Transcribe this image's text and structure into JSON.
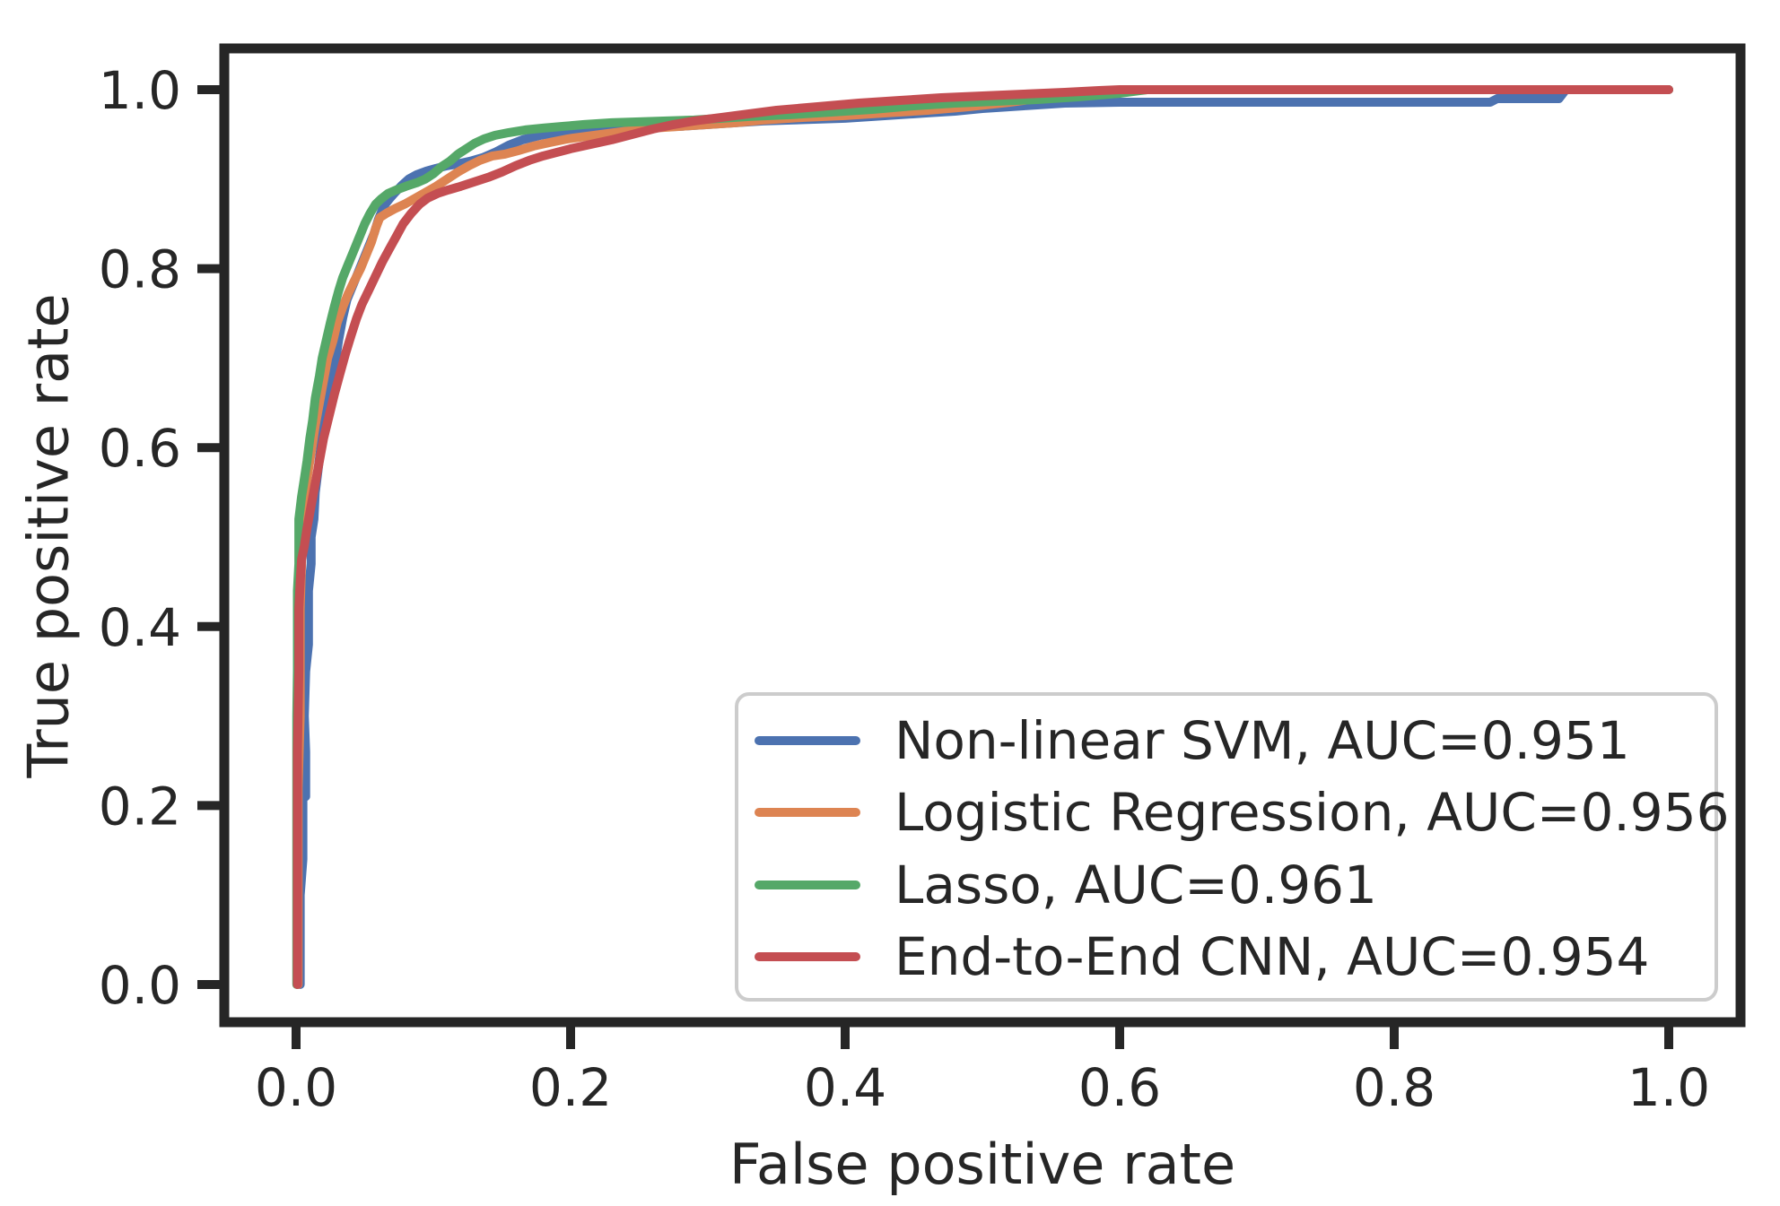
{
  "chart_data": {
    "type": "line",
    "subtype": "roc-curves",
    "title": "",
    "xlabel": "False positive rate",
    "ylabel": "True positive rate",
    "xlim": [
      -0.054,
      1.055
    ],
    "ylim": [
      -0.05,
      1.046
    ],
    "grid": false,
    "legend_position": "lower right",
    "x_tick_values": [
      0.0,
      0.2,
      0.4,
      0.6,
      0.8,
      1.0
    ],
    "x_tick_labels": [
      "0.0",
      "0.2",
      "0.4",
      "0.6",
      "0.8",
      "1.0"
    ],
    "y_tick_values": [
      0.0,
      0.2,
      0.4,
      0.6,
      0.8,
      1.0
    ],
    "y_tick_labels": [
      "0.0",
      "0.2",
      "0.4",
      "0.6",
      "0.8",
      "1.0"
    ],
    "colors": {
      "text": "#262626",
      "spine": "#262626",
      "legend_border": "#cccccc",
      "background": "#ffffff"
    },
    "series": [
      {
        "name": "Non-linear SVM",
        "auc": 0.951,
        "legend_label": "Non-linear SVM, AUC=0.951",
        "color": "#4C72B0",
        "points": [
          [
            0.003,
            0.0
          ],
          [
            0.003,
            0.1
          ],
          [
            0.005,
            0.14
          ],
          [
            0.005,
            0.21
          ],
          [
            0.007,
            0.21
          ],
          [
            0.007,
            0.26
          ],
          [
            0.006,
            0.3
          ],
          [
            0.007,
            0.35
          ],
          [
            0.009,
            0.38
          ],
          [
            0.009,
            0.44
          ],
          [
            0.011,
            0.47
          ],
          [
            0.011,
            0.5
          ],
          [
            0.013,
            0.52
          ],
          [
            0.014,
            0.55
          ],
          [
            0.016,
            0.575
          ],
          [
            0.018,
            0.6
          ],
          [
            0.02,
            0.625
          ],
          [
            0.023,
            0.65
          ],
          [
            0.026,
            0.675
          ],
          [
            0.029,
            0.7
          ],
          [
            0.031,
            0.72
          ],
          [
            0.034,
            0.745
          ],
          [
            0.037,
            0.765
          ],
          [
            0.041,
            0.78
          ],
          [
            0.045,
            0.795
          ],
          [
            0.049,
            0.81
          ],
          [
            0.053,
            0.825
          ],
          [
            0.057,
            0.84
          ],
          [
            0.06,
            0.855
          ],
          [
            0.064,
            0.87
          ],
          [
            0.068,
            0.878
          ],
          [
            0.072,
            0.885
          ],
          [
            0.077,
            0.893
          ],
          [
            0.082,
            0.9
          ],
          [
            0.088,
            0.905
          ],
          [
            0.095,
            0.909
          ],
          [
            0.102,
            0.912
          ],
          [
            0.11,
            0.915
          ],
          [
            0.118,
            0.917
          ],
          [
            0.127,
            0.92
          ],
          [
            0.136,
            0.924
          ],
          [
            0.145,
            0.93
          ],
          [
            0.155,
            0.938
          ],
          [
            0.165,
            0.944
          ],
          [
            0.178,
            0.949
          ],
          [
            0.19,
            0.952
          ],
          [
            0.205,
            0.955
          ],
          [
            0.22,
            0.956
          ],
          [
            0.24,
            0.957
          ],
          [
            0.26,
            0.958
          ],
          [
            0.28,
            0.959
          ],
          [
            0.3,
            0.961
          ],
          [
            0.32,
            0.963
          ],
          [
            0.34,
            0.965
          ],
          [
            0.36,
            0.966
          ],
          [
            0.38,
            0.967
          ],
          [
            0.4,
            0.968
          ],
          [
            0.42,
            0.97
          ],
          [
            0.44,
            0.972
          ],
          [
            0.46,
            0.974
          ],
          [
            0.48,
            0.976
          ],
          [
            0.5,
            0.979
          ],
          [
            0.53,
            0.982
          ],
          [
            0.56,
            0.985
          ],
          [
            0.6,
            0.986
          ],
          [
            0.7,
            0.986
          ],
          [
            0.8,
            0.986
          ],
          [
            0.87,
            0.986
          ],
          [
            0.875,
            0.99
          ],
          [
            0.92,
            0.99
          ],
          [
            0.925,
            1.0
          ],
          [
            1.0,
            1.0
          ]
        ]
      },
      {
        "name": "Logistic Regression",
        "auc": 0.956,
        "legend_label": "Logistic Regression, AUC=0.956",
        "color": "#DD8452",
        "points": [
          [
            0.0015,
            0.0
          ],
          [
            0.0015,
            0.22
          ],
          [
            0.003,
            0.3
          ],
          [
            0.003,
            0.42
          ],
          [
            0.004,
            0.47
          ],
          [
            0.004,
            0.52
          ],
          [
            0.006,
            0.54
          ],
          [
            0.008,
            0.565
          ],
          [
            0.01,
            0.585
          ],
          [
            0.012,
            0.605
          ],
          [
            0.014,
            0.625
          ],
          [
            0.017,
            0.65
          ],
          [
            0.02,
            0.675
          ],
          [
            0.023,
            0.7
          ],
          [
            0.027,
            0.72
          ],
          [
            0.03,
            0.74
          ],
          [
            0.034,
            0.757
          ],
          [
            0.038,
            0.772
          ],
          [
            0.042,
            0.785
          ],
          [
            0.047,
            0.8
          ],
          [
            0.051,
            0.815
          ],
          [
            0.055,
            0.83
          ],
          [
            0.058,
            0.845
          ],
          [
            0.061,
            0.857
          ],
          [
            0.066,
            0.862
          ],
          [
            0.072,
            0.867
          ],
          [
            0.079,
            0.872
          ],
          [
            0.086,
            0.878
          ],
          [
            0.094,
            0.885
          ],
          [
            0.102,
            0.892
          ],
          [
            0.11,
            0.9
          ],
          [
            0.118,
            0.908
          ],
          [
            0.126,
            0.915
          ],
          [
            0.134,
            0.921
          ],
          [
            0.143,
            0.926
          ],
          [
            0.152,
            0.928
          ],
          [
            0.162,
            0.932
          ],
          [
            0.173,
            0.937
          ],
          [
            0.185,
            0.941
          ],
          [
            0.198,
            0.945
          ],
          [
            0.212,
            0.948
          ],
          [
            0.227,
            0.951
          ],
          [
            0.243,
            0.954
          ],
          [
            0.26,
            0.957
          ],
          [
            0.28,
            0.959
          ],
          [
            0.3,
            0.961
          ],
          [
            0.32,
            0.963
          ],
          [
            0.34,
            0.966
          ],
          [
            0.37,
            0.969
          ],
          [
            0.4,
            0.971
          ],
          [
            0.43,
            0.974
          ],
          [
            0.46,
            0.977
          ],
          [
            0.49,
            0.981
          ],
          [
            0.52,
            0.986
          ],
          [
            0.545,
            0.991
          ],
          [
            0.565,
            0.996
          ],
          [
            0.585,
            0.998
          ],
          [
            0.6,
            0.999
          ],
          [
            0.62,
            1.0
          ],
          [
            1.0,
            1.0
          ]
        ]
      },
      {
        "name": "Lasso",
        "auc": 0.961,
        "legend_label": "Lasso, AUC=0.961",
        "color": "#55A868",
        "points": [
          [
            0.0005,
            0.0
          ],
          [
            0.0005,
            0.3
          ],
          [
            0.001,
            0.35
          ],
          [
            0.001,
            0.44
          ],
          [
            0.002,
            0.47
          ],
          [
            0.002,
            0.52
          ],
          [
            0.004,
            0.545
          ],
          [
            0.006,
            0.565
          ],
          [
            0.008,
            0.585
          ],
          [
            0.01,
            0.61
          ],
          [
            0.012,
            0.63
          ],
          [
            0.014,
            0.655
          ],
          [
            0.017,
            0.68
          ],
          [
            0.019,
            0.7
          ],
          [
            0.022,
            0.72
          ],
          [
            0.025,
            0.74
          ],
          [
            0.028,
            0.758
          ],
          [
            0.031,
            0.775
          ],
          [
            0.034,
            0.79
          ],
          [
            0.038,
            0.805
          ],
          [
            0.042,
            0.82
          ],
          [
            0.046,
            0.835
          ],
          [
            0.05,
            0.85
          ],
          [
            0.054,
            0.862
          ],
          [
            0.058,
            0.872
          ],
          [
            0.062,
            0.878
          ],
          [
            0.067,
            0.884
          ],
          [
            0.073,
            0.888
          ],
          [
            0.08,
            0.892
          ],
          [
            0.088,
            0.896
          ],
          [
            0.094,
            0.9
          ],
          [
            0.1,
            0.906
          ],
          [
            0.106,
            0.914
          ],
          [
            0.112,
            0.92
          ],
          [
            0.118,
            0.928
          ],
          [
            0.124,
            0.934
          ],
          [
            0.13,
            0.94
          ],
          [
            0.137,
            0.945
          ],
          [
            0.145,
            0.949
          ],
          [
            0.155,
            0.952
          ],
          [
            0.167,
            0.955
          ],
          [
            0.18,
            0.957
          ],
          [
            0.195,
            0.959
          ],
          [
            0.21,
            0.961
          ],
          [
            0.23,
            0.963
          ],
          [
            0.25,
            0.964
          ],
          [
            0.27,
            0.965
          ],
          [
            0.29,
            0.966
          ],
          [
            0.31,
            0.968
          ],
          [
            0.33,
            0.97
          ],
          [
            0.36,
            0.972
          ],
          [
            0.39,
            0.975
          ],
          [
            0.42,
            0.978
          ],
          [
            0.45,
            0.982
          ],
          [
            0.48,
            0.985
          ],
          [
            0.51,
            0.987
          ],
          [
            0.54,
            0.989
          ],
          [
            0.57,
            0.992
          ],
          [
            0.6,
            0.996
          ],
          [
            0.62,
            1.0
          ],
          [
            1.0,
            1.0
          ]
        ]
      },
      {
        "name": "End-to-End CNN",
        "auc": 0.954,
        "legend_label": "End-to-End CNN, AUC=0.954",
        "color": "#C44E52",
        "points": [
          [
            0.001,
            0.0
          ],
          [
            0.001,
            0.26
          ],
          [
            0.002,
            0.35
          ],
          [
            0.002,
            0.42
          ],
          [
            0.003,
            0.45
          ],
          [
            0.004,
            0.475
          ],
          [
            0.006,
            0.49
          ],
          [
            0.008,
            0.51
          ],
          [
            0.011,
            0.535
          ],
          [
            0.014,
            0.56
          ],
          [
            0.017,
            0.585
          ],
          [
            0.02,
            0.61
          ],
          [
            0.024,
            0.635
          ],
          [
            0.028,
            0.66
          ],
          [
            0.032,
            0.683
          ],
          [
            0.036,
            0.705
          ],
          [
            0.04,
            0.725
          ],
          [
            0.044,
            0.744
          ],
          [
            0.048,
            0.76
          ],
          [
            0.053,
            0.776
          ],
          [
            0.058,
            0.792
          ],
          [
            0.063,
            0.808
          ],
          [
            0.068,
            0.822
          ],
          [
            0.073,
            0.836
          ],
          [
            0.078,
            0.85
          ],
          [
            0.084,
            0.862
          ],
          [
            0.09,
            0.872
          ],
          [
            0.096,
            0.879
          ],
          [
            0.103,
            0.884
          ],
          [
            0.111,
            0.888
          ],
          [
            0.12,
            0.892
          ],
          [
            0.13,
            0.897
          ],
          [
            0.14,
            0.902
          ],
          [
            0.15,
            0.908
          ],
          [
            0.16,
            0.915
          ],
          [
            0.17,
            0.921
          ],
          [
            0.18,
            0.926
          ],
          [
            0.19,
            0.93
          ],
          [
            0.2,
            0.934
          ],
          [
            0.215,
            0.939
          ],
          [
            0.23,
            0.944
          ],
          [
            0.245,
            0.95
          ],
          [
            0.26,
            0.956
          ],
          [
            0.275,
            0.961
          ],
          [
            0.29,
            0.965
          ],
          [
            0.31,
            0.969
          ],
          [
            0.33,
            0.973
          ],
          [
            0.35,
            0.977
          ],
          [
            0.38,
            0.981
          ],
          [
            0.41,
            0.985
          ],
          [
            0.44,
            0.988
          ],
          [
            0.47,
            0.991
          ],
          [
            0.5,
            0.993
          ],
          [
            0.53,
            0.995
          ],
          [
            0.56,
            0.997
          ],
          [
            0.585,
            0.999
          ],
          [
            0.6,
            1.0
          ],
          [
            1.0,
            1.0
          ]
        ]
      }
    ]
  }
}
